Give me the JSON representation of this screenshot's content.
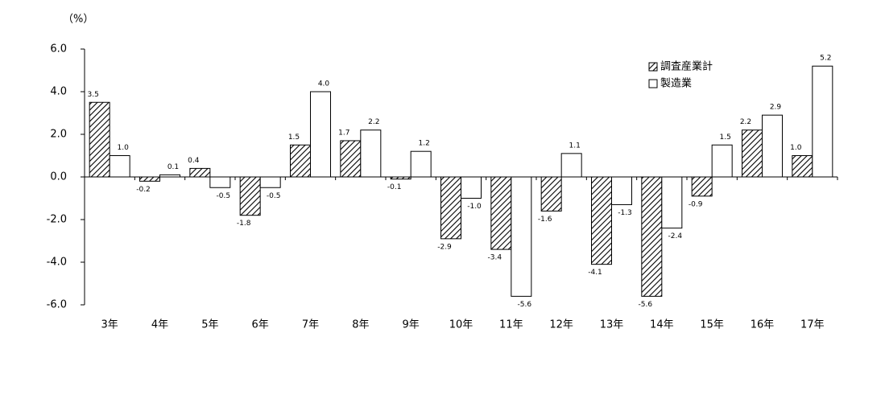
{
  "chart_data": {
    "type": "bar",
    "y_label": "（%）",
    "categories": [
      "3年",
      "4年",
      "5年",
      "6年",
      "7年",
      "8年",
      "9年",
      "10年",
      "11年",
      "12年",
      "13年",
      "14年",
      "15年",
      "16年",
      "17年"
    ],
    "series": [
      {
        "name": "調査産業計",
        "color": "#000000",
        "pattern": "hatch",
        "values": [
          3.5,
          -0.2,
          0.4,
          -1.8,
          1.5,
          1.7,
          -0.1,
          -2.9,
          -3.4,
          -1.6,
          -4.1,
          -5.6,
          -0.9,
          2.2,
          1.0
        ],
        "value_labels": [
          "3.5",
          "-0.2",
          "0.4",
          "-1.8",
          "1.5",
          "1.7",
          "-0.1",
          "-2.9",
          "-3.4",
          "-1.6",
          "-4.1",
          "-5.6",
          "-0.9",
          "2.2",
          "1.0"
        ]
      },
      {
        "name": "製造業",
        "color": "#ffffff",
        "pattern": "solid",
        "values": [
          1.0,
          0.1,
          -0.5,
          -0.5,
          4.0,
          2.2,
          1.2,
          -1.0,
          -5.6,
          1.1,
          -1.3,
          -2.4,
          1.5,
          2.9,
          5.2
        ],
        "value_labels": [
          "1.0",
          "0.1",
          "-0.5",
          "-0.5",
          "4.0",
          "2.2",
          "1.2",
          "-1.0",
          "-5.6",
          "1.1",
          "-1.3",
          "-2.4",
          "1.5",
          "2.9",
          "5.2"
        ]
      }
    ],
    "ylim": [
      -6,
      6
    ],
    "yticks": [
      {
        "value": -6,
        "label": "-6.0"
      },
      {
        "value": -4,
        "label": "-4.0"
      },
      {
        "value": -2,
        "label": "-2.0"
      },
      {
        "value": 0,
        "label": "0.0"
      },
      {
        "value": 2,
        "label": "2.0"
      },
      {
        "value": 4,
        "label": "4.0"
      },
      {
        "value": 6,
        "label": "6.0"
      }
    ],
    "grid": false,
    "legend": "top-right"
  }
}
